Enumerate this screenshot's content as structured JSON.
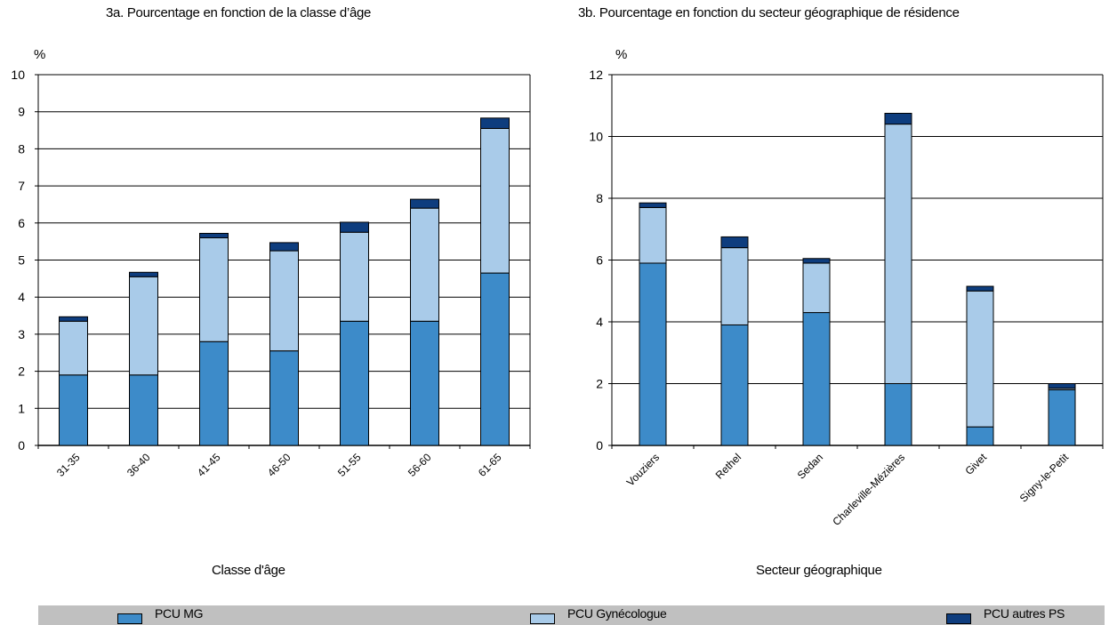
{
  "colors": {
    "mg": "#3d8bc9",
    "gyn": "#a9cbe9",
    "autres": "#0e3d7e",
    "grid": "#000000",
    "legend_bg": "#c0c0c0"
  },
  "legend": {
    "items": [
      {
        "label": "PCU MG",
        "color_key": "mg"
      },
      {
        "label": "PCU Gynécologue",
        "color_key": "gyn"
      },
      {
        "label": "PCU autres PS",
        "color_key": "autres"
      }
    ]
  },
  "chart_data": [
    {
      "type": "bar",
      "stacked": true,
      "title": "3a. Pourcentage en fonction de la classe d’âge",
      "xlabel": "Classe d'âge",
      "ylabel": "%",
      "ylim": [
        0,
        10
      ],
      "yticks": [
        0,
        1,
        2,
        3,
        4,
        5,
        6,
        7,
        8,
        9,
        10
      ],
      "grid": true,
      "categories": [
        "31-35",
        "36-40",
        "41-45",
        "46-50",
        "51-55",
        "56-60",
        "61-65"
      ],
      "series": [
        {
          "name": "PCU MG",
          "values": [
            1.9,
            1.9,
            2.8,
            2.55,
            3.35,
            3.35,
            4.65
          ]
        },
        {
          "name": "PCU Gynécologue",
          "values": [
            1.45,
            2.65,
            2.8,
            2.7,
            2.4,
            3.05,
            3.9
          ]
        },
        {
          "name": "PCU autres PS",
          "values": [
            0.12,
            0.12,
            0.12,
            0.22,
            0.27,
            0.24,
            0.28
          ]
        }
      ]
    },
    {
      "type": "bar",
      "stacked": true,
      "title": "3b. Pourcentage en fonction du secteur géographique de résidence",
      "xlabel": "Secteur géographique",
      "ylabel": "%",
      "ylim": [
        0,
        12
      ],
      "yticks": [
        0,
        2,
        4,
        6,
        8,
        10,
        12
      ],
      "grid": true,
      "categories": [
        "Vouziers",
        "Rethel",
        "Sedan",
        "Charleville-Mézières",
        "Givet",
        "Signy-le-Petit"
      ],
      "series": [
        {
          "name": "PCU MG",
          "values": [
            5.9,
            3.9,
            4.3,
            2.0,
            0.6,
            1.8
          ]
        },
        {
          "name": "PCU Gynécologue",
          "values": [
            1.8,
            2.5,
            1.6,
            8.4,
            4.4,
            0.05
          ]
        },
        {
          "name": "PCU autres PS",
          "values": [
            0.15,
            0.35,
            0.15,
            0.35,
            0.15,
            0.15
          ]
        }
      ]
    }
  ]
}
